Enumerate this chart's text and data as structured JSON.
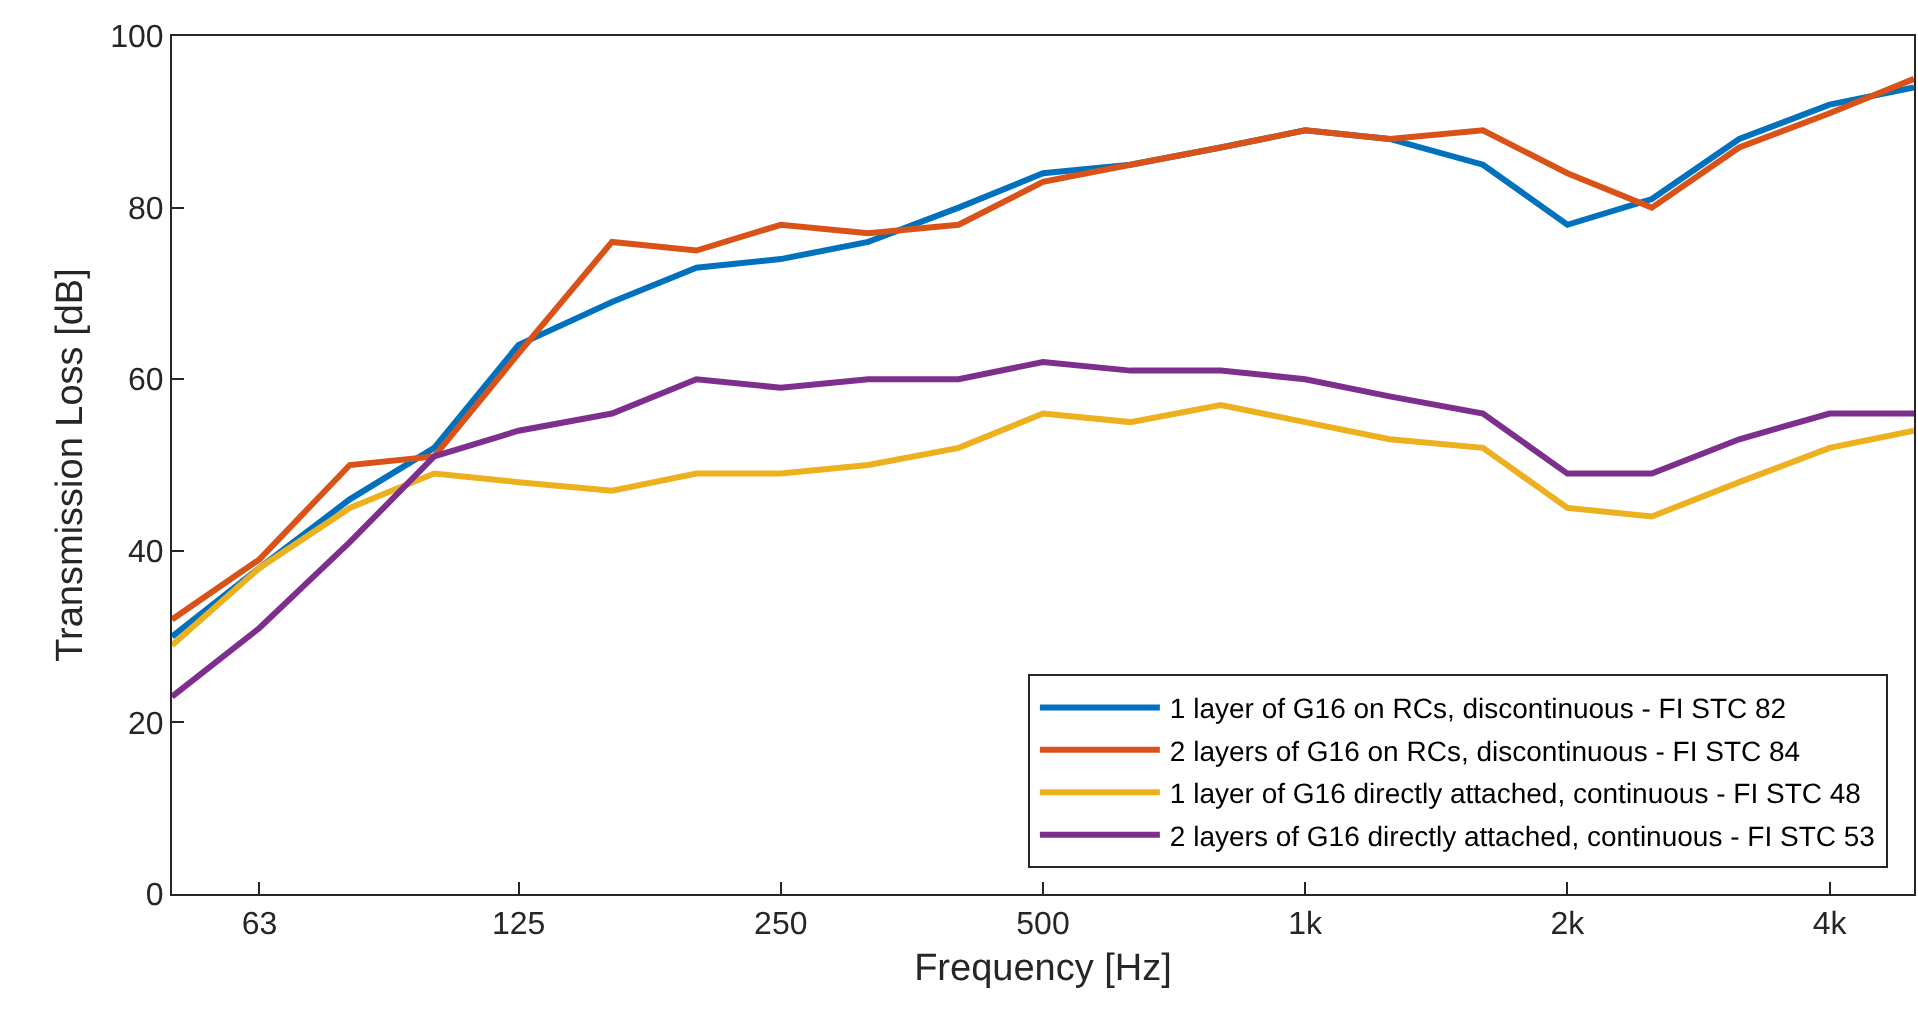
{
  "chart_data": {
    "type": "line",
    "xlabel": "Frequency [Hz]",
    "ylabel": "Transmission Loss [dB]",
    "log": "x",
    "x": [
      50,
      63,
      80,
      100,
      125,
      160,
      200,
      250,
      315,
      400,
      500,
      630,
      800,
      1000,
      1250,
      1600,
      2000,
      2500,
      3150,
      4000,
      5000
    ],
    "xlim": [
      50,
      5000
    ],
    "xticks": [
      63,
      125,
      250,
      500,
      {
        "value": 1000,
        "label": "1k"
      },
      {
        "value": 2000,
        "label": "2k"
      },
      {
        "value": 4000,
        "label": "4k"
      }
    ],
    "ylim": [
      0,
      100
    ],
    "yticks": [
      0,
      20,
      40,
      60,
      80,
      100
    ],
    "legend": "bottom right",
    "marker": "none",
    "line_style": "solid",
    "series": [
      {
        "name": "1 layer of G16 on RCs, discontinuous - FI STC 82",
        "color": "#0072bd",
        "values": [
          30,
          38,
          46,
          52,
          64,
          69,
          73,
          74,
          76,
          80,
          84,
          85,
          87,
          89,
          88,
          85,
          78,
          81,
          88,
          92,
          94
        ]
      },
      {
        "name": "2 layers of G16 on RCs, discontinuous - FI STC 84",
        "color": "#d95319",
        "values": [
          32,
          39,
          50,
          51,
          63,
          76,
          75,
          78,
          77,
          78,
          83,
          85,
          87,
          89,
          88,
          89,
          84,
          80,
          87,
          91,
          95
        ]
      },
      {
        "name": "1 layer of G16 directly attached, continuous - FI STC 48",
        "color": "#edb120",
        "values": [
          29,
          38,
          45,
          49,
          48,
          47,
          49,
          49,
          50,
          52,
          56,
          55,
          57,
          55,
          53,
          52,
          45,
          44,
          48,
          52,
          54
        ]
      },
      {
        "name": "2 layers of G16 directly attached, continuous - FI STC 53",
        "color": "#7e2f8e",
        "values": [
          23,
          31,
          41,
          51,
          54,
          56,
          60,
          59,
          60,
          60,
          62,
          61,
          61,
          60,
          58,
          56,
          49,
          49,
          53,
          56,
          56
        ]
      }
    ]
  }
}
